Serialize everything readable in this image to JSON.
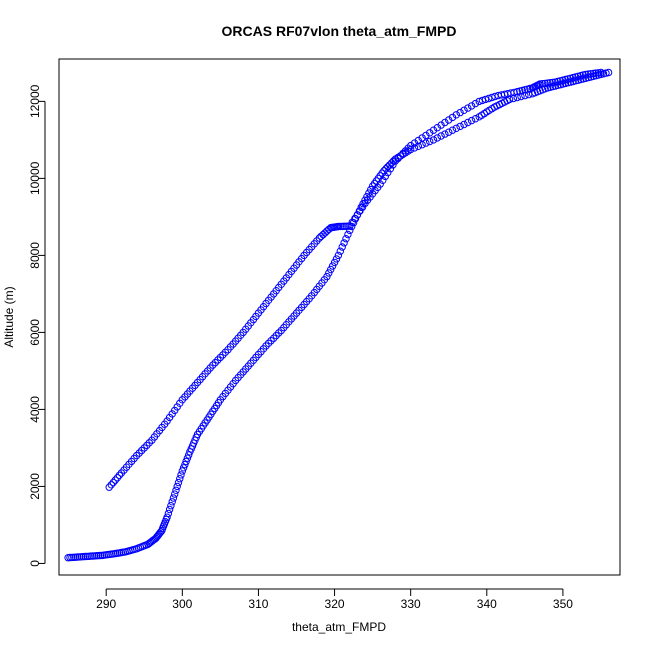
{
  "chart_data": {
    "type": "scatter",
    "title": "ORCAS RF07vlon theta_atm_FMPD",
    "xlabel": "theta_atm_FMPD",
    "ylabel": "Altitude (m)",
    "xlim": [
      283.8,
      357.5
    ],
    "ylim": [
      -300,
      13100
    ],
    "x_ticks": [
      290,
      300,
      310,
      320,
      330,
      340,
      350
    ],
    "y_ticks": [
      0,
      2000,
      4000,
      6000,
      8000,
      10000,
      12000
    ],
    "grid": false,
    "legend": "none",
    "marker": "open-circle",
    "series_color": "#0000ff",
    "series": [
      {
        "segment": "descent-profile-upper",
        "x": [
          290.4,
          292,
          294,
          296,
          298,
          300,
          302,
          304,
          306,
          308,
          310,
          312,
          314,
          316,
          318,
          319.5,
          320.5,
          322,
          324,
          326,
          328,
          330,
          333,
          336,
          339,
          341.5,
          344,
          346,
          347,
          349,
          351,
          353,
          355
        ],
        "y": [
          1980,
          2350,
          2800,
          3200,
          3700,
          4250,
          4700,
          5150,
          5550,
          6000,
          6500,
          7000,
          7500,
          8000,
          8450,
          8720,
          8750,
          8760,
          9350,
          9850,
          10450,
          10850,
          11250,
          11650,
          12000,
          12150,
          12250,
          12350,
          12450,
          12500,
          12600,
          12700,
          12750
        ]
      },
      {
        "segment": "ascent-profile-lower",
        "x": [
          285,
          286.5,
          288,
          289.5,
          291,
          292.5,
          294,
          295.5,
          296.5,
          297.3,
          298,
          299,
          300,
          301,
          302,
          303.5,
          305,
          307,
          309,
          311,
          313,
          315,
          317,
          319,
          320.5,
          322,
          323.5,
          325,
          326.5,
          328,
          330,
          333,
          336,
          339,
          341,
          343,
          346,
          348,
          350,
          352,
          354,
          356
        ],
        "y": [
          150,
          170,
          190,
          210,
          250,
          300,
          380,
          500,
          650,
          850,
          1200,
          1800,
          2400,
          2900,
          3350,
          3800,
          4250,
          4750,
          5200,
          5650,
          6050,
          6500,
          6950,
          7450,
          8000,
          8650,
          9250,
          9800,
          10200,
          10500,
          10750,
          11000,
          11300,
          11600,
          11850,
          12050,
          12200,
          12350,
          12450,
          12550,
          12650,
          12750
        ]
      }
    ]
  }
}
